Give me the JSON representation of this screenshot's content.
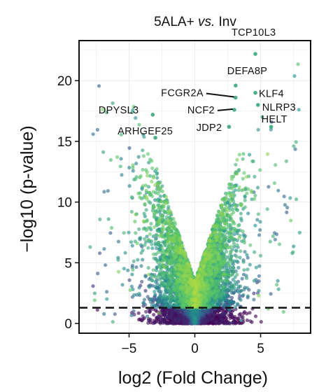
{
  "chart_data": {
    "type": "scatter",
    "title_parts": [
      "5ALA+ ",
      "vs.",
      " Inv"
    ],
    "xlabel": "log2 (Fold Change)",
    "ylabel": "−log10 (p-value)",
    "xlim": [
      -8.8,
      8.8
    ],
    "ylim": [
      -0.8,
      23.3
    ],
    "x_ticks": [
      -5,
      0,
      5
    ],
    "x_tick_labels": [
      "−5",
      "0",
      "5"
    ],
    "y_ticks": [
      0,
      5,
      10,
      15,
      20
    ],
    "y_tick_labels": [
      "0",
      "5",
      "10",
      "15",
      "20"
    ],
    "grid": true,
    "threshold_y": 1.3,
    "colormap": [
      "#440154",
      "#3b528b",
      "#21908d",
      "#5dc963",
      "#fde725"
    ],
    "highlighted_genes": [
      {
        "name": "TCP10L3",
        "x": 4.6,
        "y": 22.2
      },
      {
        "name": "DEFA8P",
        "x": 3.1,
        "y": 19.6
      },
      {
        "name": "FCGR2A",
        "x": 3.1,
        "y": 18.6
      },
      {
        "name": "KLF4",
        "x": 4.6,
        "y": 19.0
      },
      {
        "name": "NLRP3",
        "x": 4.8,
        "y": 18.0
      },
      {
        "name": "NCF2",
        "x": 3.0,
        "y": 17.6
      },
      {
        "name": "JDP2",
        "x": 2.6,
        "y": 16.2
      },
      {
        "name": "HELT",
        "x": 5.8,
        "y": 16.2
      },
      {
        "name": "DPYSL3",
        "x": -3.2,
        "y": 17.2
      },
      {
        "name": "ARHGEF25",
        "x": -3.0,
        "y": 15.3
      }
    ]
  }
}
